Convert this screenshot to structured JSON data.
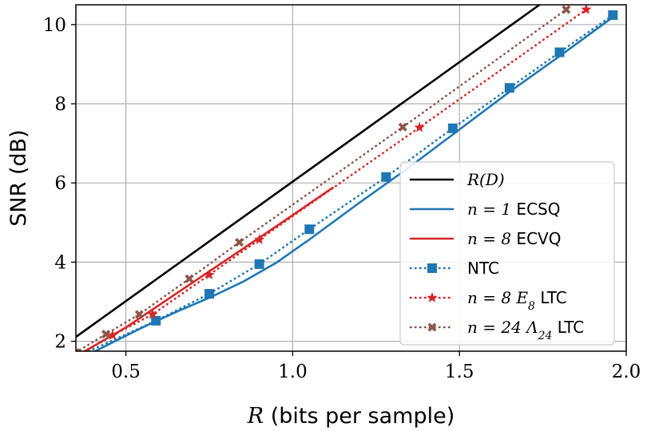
{
  "chart_data": {
    "type": "line",
    "xlabel_math": "R",
    "xlabel_text": " (bits per sample)",
    "ylabel": "SNR (dB)",
    "xlim": [
      0.35,
      2.0
    ],
    "ylim": [
      1.75,
      10.5
    ],
    "x_ticks": [
      0.5,
      1.0,
      1.5,
      2.0
    ],
    "x_tick_labels": [
      "0.5",
      "1.0",
      "1.5",
      "2.0"
    ],
    "y_ticks": [
      2,
      4,
      6,
      8,
      10
    ],
    "y_tick_labels": [
      "2",
      "4",
      "6",
      "8",
      "10"
    ],
    "grid": true,
    "legend_position": "lower-right",
    "series": [
      {
        "legend_parts": [
          {
            "t": "R(D)",
            "m": true
          }
        ],
        "color": "#000000",
        "style": "solid",
        "marker": "none",
        "x": [
          0.35,
          1.74
        ],
        "y": [
          2.11,
          10.5
        ]
      },
      {
        "legend_parts": [
          {
            "t": "n = 1",
            "m": true
          },
          {
            "t": " ECSQ",
            "m": false
          }
        ],
        "color": "#1f77b4",
        "style": "solid",
        "marker": "none",
        "x": [
          0.35,
          0.45,
          0.55,
          0.65,
          0.75,
          0.85,
          0.95,
          1.05,
          1.2,
          1.35,
          1.5,
          1.65,
          1.8,
          1.97
        ],
        "y": [
          1.5,
          1.93,
          2.35,
          2.74,
          3.1,
          3.5,
          3.98,
          4.57,
          5.5,
          6.4,
          7.35,
          8.3,
          9.2,
          10.25
        ]
      },
      {
        "legend_parts": [
          {
            "t": "n = 8",
            "m": true
          },
          {
            "t": " ECVQ",
            "m": false
          }
        ],
        "color": "#d62728",
        "style": "solid",
        "marker": "none",
        "x": [
          0.35,
          0.5,
          0.65,
          0.8,
          0.95,
          1.12
        ],
        "y": [
          1.62,
          2.35,
          3.2,
          4.05,
          4.9,
          5.88
        ]
      },
      {
        "legend_parts": [
          {
            "t": "NTC",
            "m": false
          }
        ],
        "color": "#1f77b4",
        "style": "dotted",
        "marker": "square",
        "x": [
          0.35,
          0.59,
          0.75,
          0.9,
          1.05,
          1.28,
          1.48,
          1.65,
          1.8,
          1.96
        ],
        "y": [
          1.6,
          2.52,
          3.2,
          3.95,
          4.83,
          6.15,
          7.38,
          8.4,
          9.3,
          10.24
        ]
      },
      {
        "legend_parts": [
          {
            "t": "n = 8",
            "m": true
          },
          {
            "t": " ",
            "m": false
          },
          {
            "t": "E",
            "m": true
          },
          {
            "t": "8",
            "m": true,
            "sub": true
          },
          {
            "t": " LTC",
            "m": false
          }
        ],
        "color": "#d62728",
        "style": "dotted",
        "marker": "star",
        "x": [
          0.35,
          0.46,
          0.58,
          0.75,
          0.9,
          1.38,
          1.88
        ],
        "y": [
          1.6,
          2.15,
          2.68,
          3.68,
          4.57,
          7.4,
          10.38
        ]
      },
      {
        "legend_parts": [
          {
            "t": "n = 24",
            "m": true
          },
          {
            "t": " ",
            "m": false
          },
          {
            "t": "Λ",
            "m": true
          },
          {
            "t": "24",
            "m": true,
            "sub": true
          },
          {
            "t": " LTC",
            "m": false
          }
        ],
        "color": "#8c564b",
        "style": "dotted",
        "marker": "x",
        "x": [
          0.35,
          0.44,
          0.54,
          0.69,
          0.84,
          1.33,
          1.82
        ],
        "y": [
          1.72,
          2.18,
          2.68,
          3.58,
          4.5,
          7.41,
          10.38
        ]
      }
    ]
  }
}
